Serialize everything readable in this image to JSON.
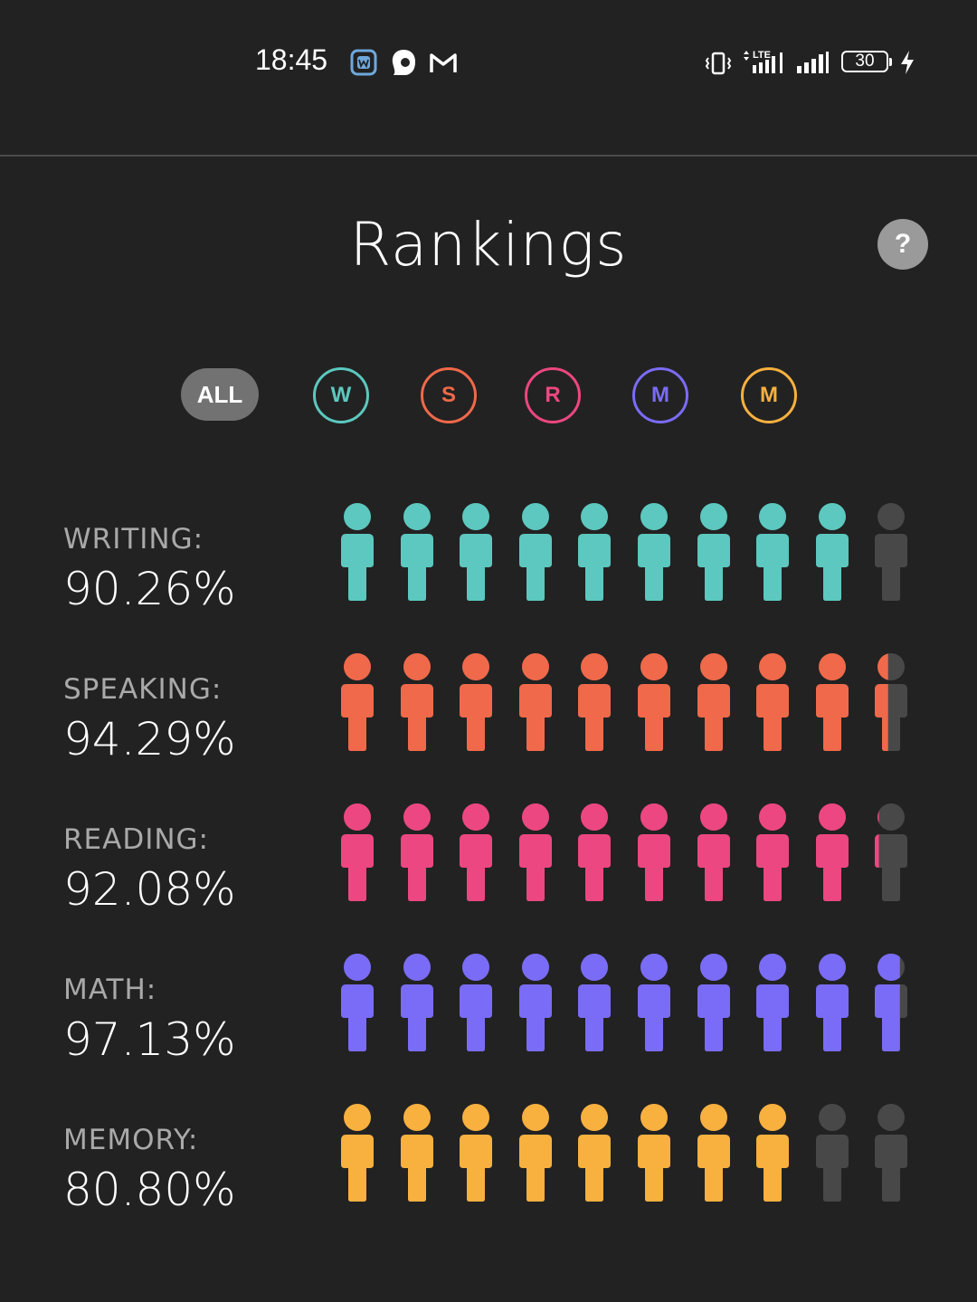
{
  "status_bar": {
    "time": "18:45",
    "icons": [
      "app-notification-icon",
      "hijab-avatar-icon",
      "gmail-icon",
      "vibrate-icon",
      "lte-signal-icon",
      "signal-bars-icon",
      "battery-icon",
      "charging-bolt-icon"
    ],
    "network": "LTE",
    "battery_level": "30"
  },
  "header": {
    "title": "Rankings",
    "help_label": "?"
  },
  "filters": [
    {
      "label": "ALL",
      "color": "#727272",
      "selected": true
    },
    {
      "label": "W",
      "color": "#5cc8bf",
      "selected": false
    },
    {
      "label": "S",
      "color": "#f0694a",
      "selected": false
    },
    {
      "label": "R",
      "color": "#ec4780",
      "selected": false
    },
    {
      "label": "M",
      "color": "#7a6cf6",
      "selected": false
    },
    {
      "label": "M",
      "color": "#f8b03f",
      "selected": false
    }
  ],
  "rankings": [
    {
      "label": "WRITING:",
      "value": "90.26%",
      "percent": 90.26,
      "color": "#5cc8bf"
    },
    {
      "label": "SPEAKING:",
      "value": "94.29%",
      "percent": 94.29,
      "color": "#f0694a"
    },
    {
      "label": "READING:",
      "value": "92.08%",
      "percent": 92.08,
      "color": "#ec4780"
    },
    {
      "label": "MATH:",
      "value": "97.13%",
      "percent": 97.13,
      "color": "#7a6cf6"
    },
    {
      "label": "MEMORY:",
      "value": "80.80%",
      "percent": 80.8,
      "color": "#f8b03f"
    }
  ],
  "empty_person_color": "#484848"
}
